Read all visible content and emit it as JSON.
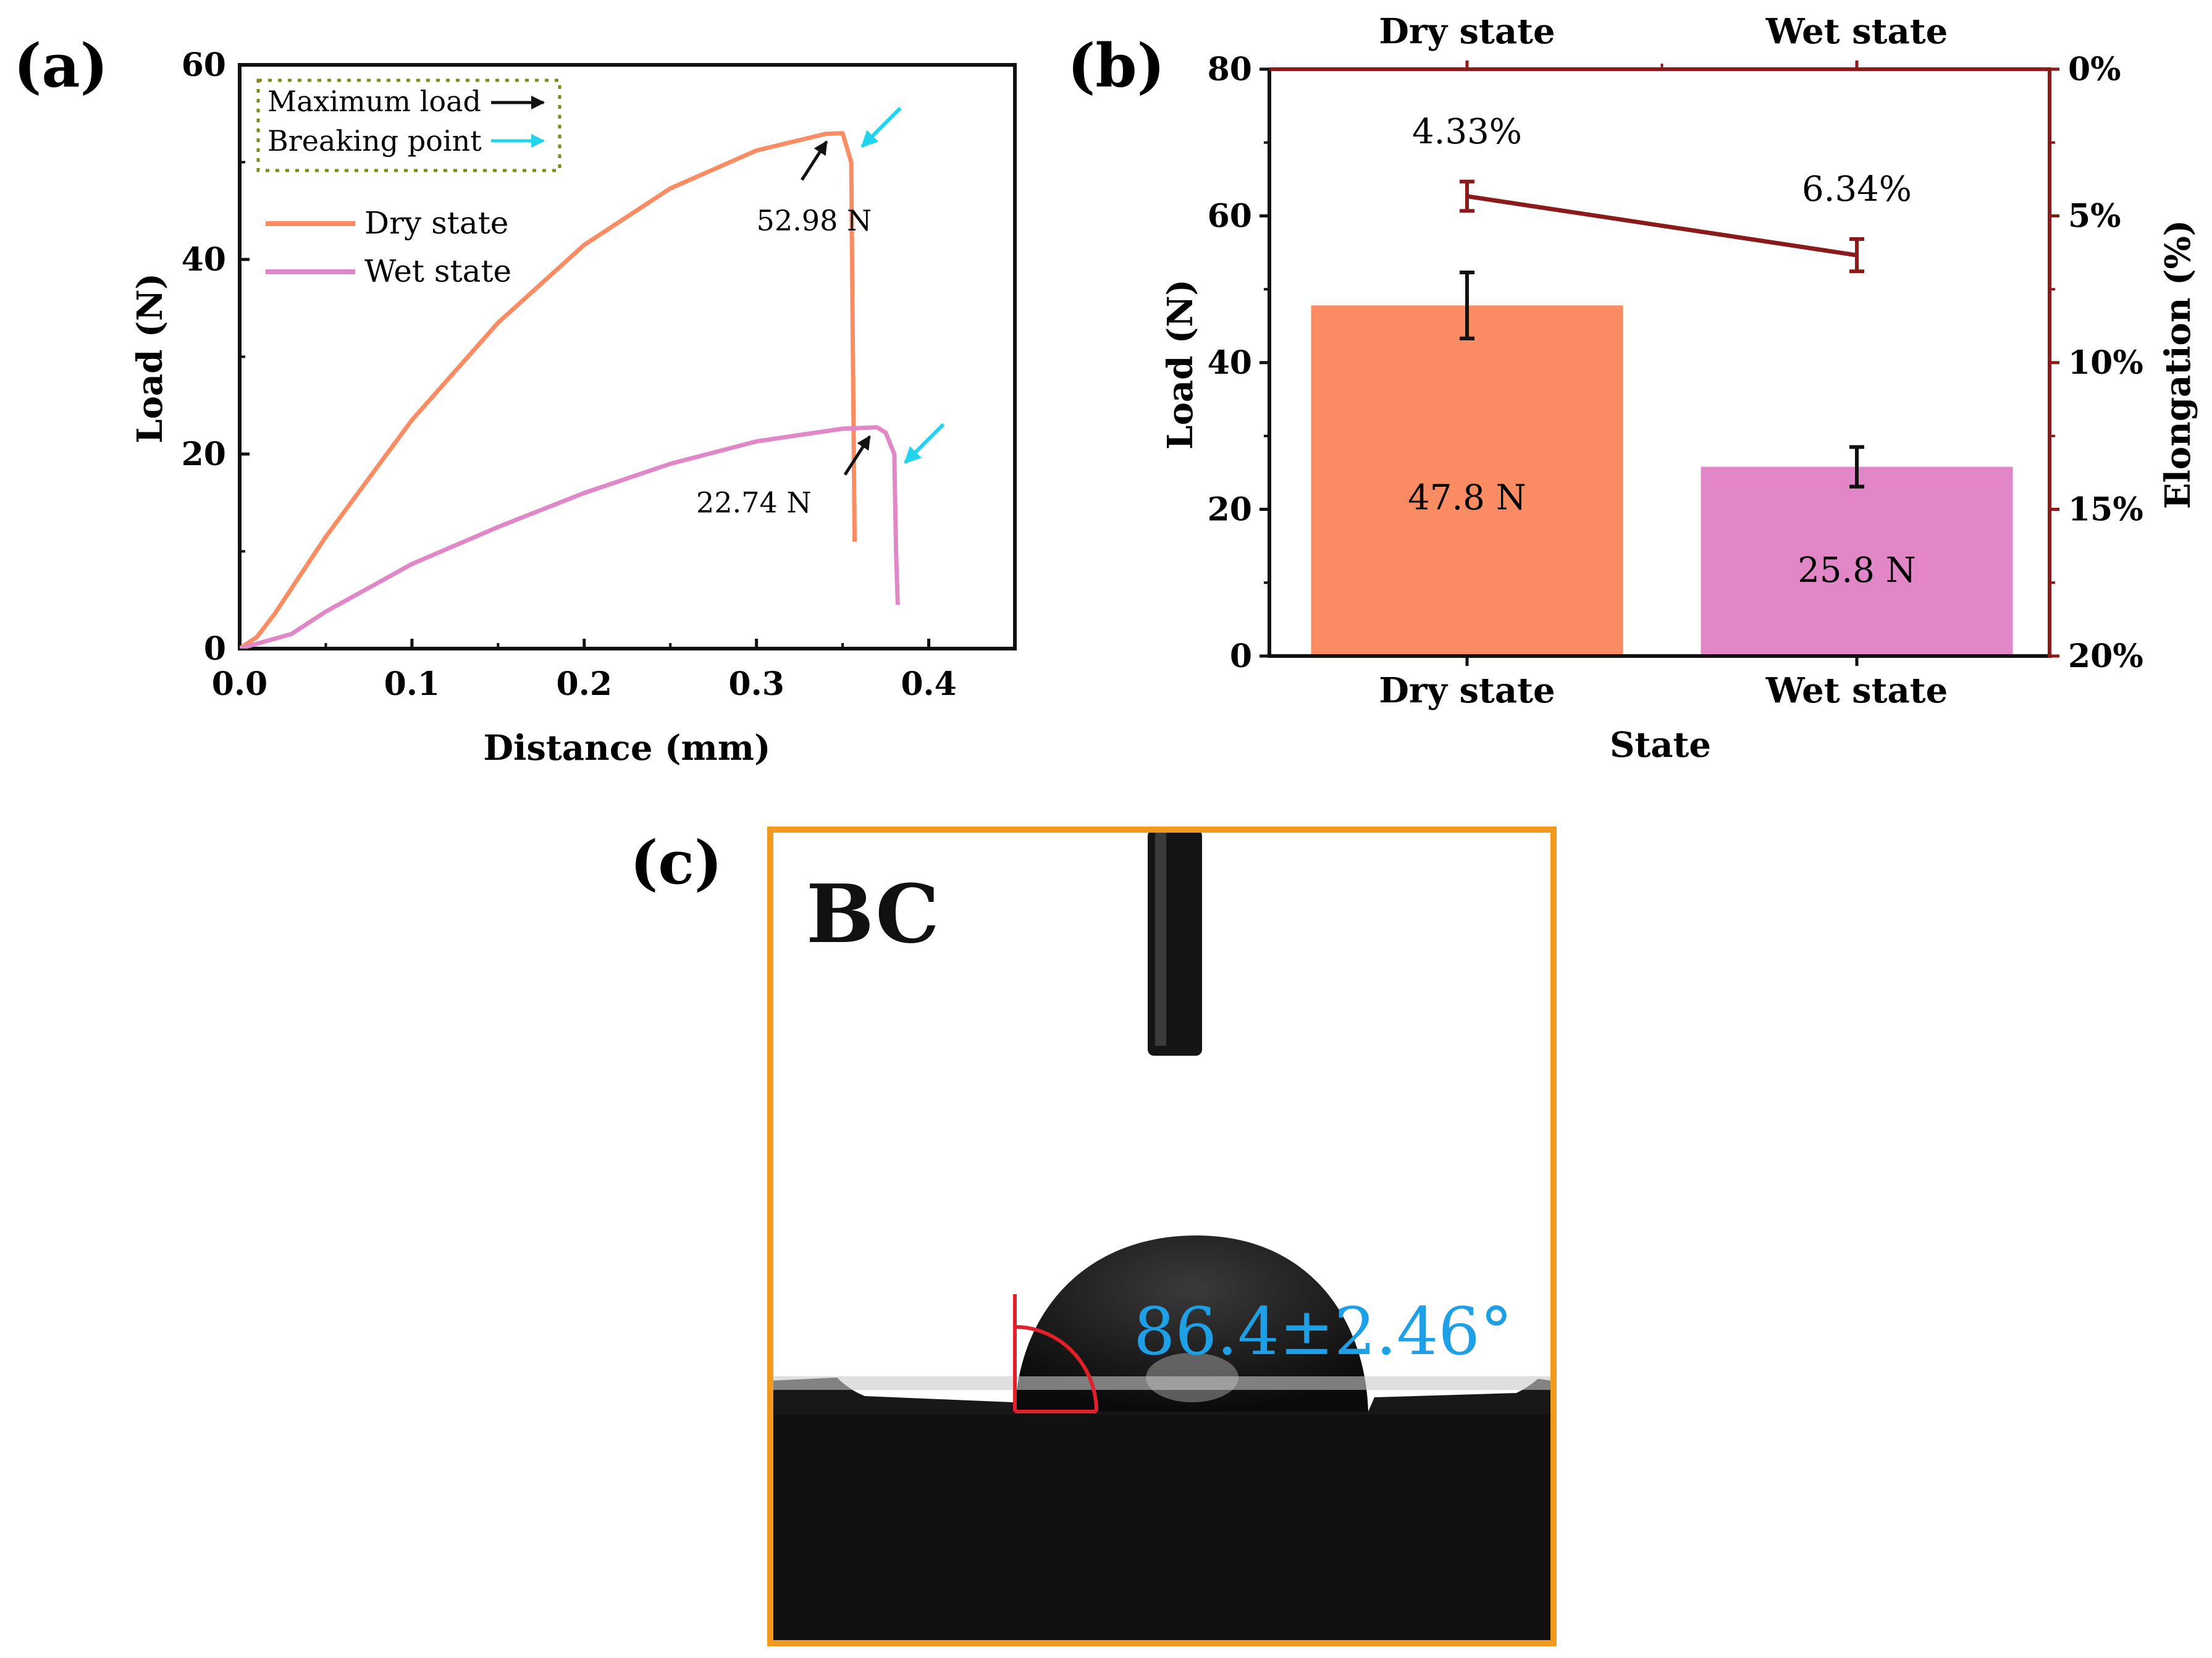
{
  "panels": {
    "a_label": "(a)",
    "b_label": "(b)",
    "c_label": "(c)"
  },
  "colors": {
    "dry": "#FA8C64",
    "wet": "#E187C8",
    "cyan_arrow": "#22D3EE",
    "elong": "#8B1A1A",
    "photo_border": "#F29A1F",
    "angle_text": "#1FA0E6",
    "angle_marker": "#E0202A"
  },
  "chart_data": [
    {
      "type": "line",
      "title": "",
      "xlabel": "Distance (mm)",
      "ylabel": "Load (N)",
      "xlim": [
        0,
        0.45
      ],
      "ylim": [
        0,
        60
      ],
      "x_ticks": [
        "0.0",
        "0.1",
        "0.2",
        "0.3",
        "0.4"
      ],
      "x_tick_values": [
        0,
        0.1,
        0.2,
        0.3,
        0.4
      ],
      "y_ticks": [
        "0",
        "20",
        "40",
        "60"
      ],
      "y_tick_values": [
        0,
        20,
        40,
        60
      ],
      "legend_box": {
        "max_load_label": "Maximum load",
        "breaking_label": "Breaking point"
      },
      "series": [
        {
          "name": "Dry state",
          "points": [
            [
              0,
              0
            ],
            [
              0.01,
              1.2
            ],
            [
              0.02,
              3.5
            ],
            [
              0.05,
              11.5
            ],
            [
              0.1,
              23.5
            ],
            [
              0.15,
              33.5
            ],
            [
              0.2,
              41.5
            ],
            [
              0.25,
              47.3
            ],
            [
              0.3,
              51.2
            ],
            [
              0.34,
              52.9
            ],
            [
              0.35,
              52.98
            ],
            [
              0.355,
              50
            ],
            [
              0.356,
              30
            ],
            [
              0.357,
              11
            ]
          ]
        },
        {
          "name": "Wet state",
          "points": [
            [
              0,
              0
            ],
            [
              0.01,
              0.5
            ],
            [
              0.03,
              1.5
            ],
            [
              0.05,
              3.8
            ],
            [
              0.1,
              8.7
            ],
            [
              0.15,
              12.5
            ],
            [
              0.2,
              16
            ],
            [
              0.25,
              19
            ],
            [
              0.3,
              21.3
            ],
            [
              0.35,
              22.6
            ],
            [
              0.37,
              22.74
            ],
            [
              0.375,
              22.2
            ],
            [
              0.38,
              20
            ],
            [
              0.381,
              10
            ],
            [
              0.382,
              4.5
            ]
          ]
        }
      ],
      "annotations": [
        {
          "text": "52.98 N",
          "x": 0.3,
          "y": 43
        },
        {
          "text": "22.74 N",
          "x": 0.265,
          "y": 14
        }
      ],
      "max_arrows": [
        {
          "x": 0.345,
          "y": 53
        },
        {
          "x": 0.37,
          "y": 22.7
        }
      ],
      "break_arrows": [
        {
          "x": 0.357,
          "y": 52
        },
        {
          "x": 0.382,
          "y": 19.5
        }
      ]
    },
    {
      "type": "bar",
      "title": "",
      "xlabel": "State",
      "ylabel": "Load (N)",
      "y2label": "Elongation (%)",
      "categories": [
        "Dry state",
        "Wet state"
      ],
      "top_categories": [
        "Dry state",
        "Wet state"
      ],
      "values": [
        47.8,
        25.8
      ],
      "errors": [
        4.5,
        2.7
      ],
      "bar_labels": [
        "47.8 N",
        "25.8 N"
      ],
      "ylim": [
        0,
        80
      ],
      "y_ticks": [
        "0",
        "20",
        "40",
        "60",
        "80"
      ],
      "y_tick_values": [
        0,
        20,
        40,
        60,
        80
      ],
      "elongation": {
        "values": [
          4.33,
          6.34
        ],
        "errors": [
          0.5,
          0.55
        ],
        "labels": [
          "4.33%",
          "6.34%"
        ],
        "ylim": [
          0,
          20
        ],
        "inverted": true,
        "ticks": [
          "0%",
          "5%",
          "10%",
          "15%",
          "20%"
        ],
        "tick_values": [
          0,
          5,
          10,
          15,
          20
        ]
      }
    }
  ],
  "photo": {
    "sample_label": "BC",
    "contact_angle": "86.4±2.46°"
  }
}
